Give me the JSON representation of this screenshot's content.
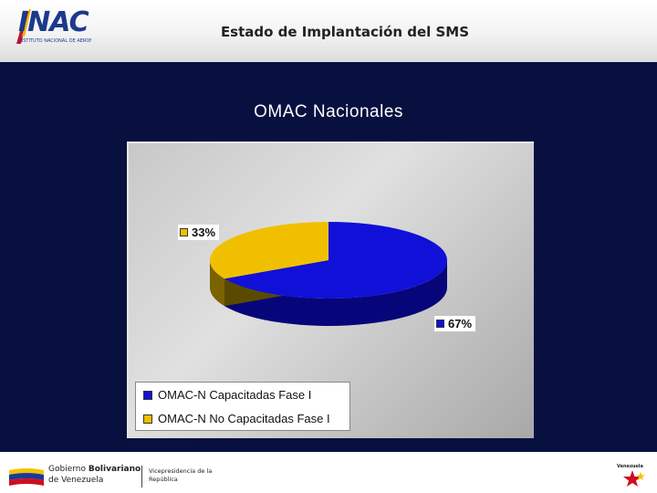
{
  "header": {
    "title": "Estado de Implantación del SMS",
    "logo_text": "INAC",
    "logo_subtext": "INSTITUTO NACIONAL DE AERONÁUTICA CIVIL"
  },
  "chart_data": {
    "type": "pie",
    "title": "OMAC Nacionales",
    "categories": [
      "OMAC-N Capacitadas Fase I",
      "OMAC-N No Capacitadas Fase I"
    ],
    "values": [
      67,
      33
    ],
    "labels": [
      "67%",
      "33%"
    ],
    "colors": [
      "#1010d8",
      "#f0c000"
    ],
    "legend_position": "bottom-left",
    "style": "3d"
  },
  "footer": {
    "gov_line1": "Gobierno ",
    "gov_line1_bold": "Bolivariano",
    "gov_line2": "de Venezuela",
    "vice_line1": "Vicepresidencia de la",
    "vice_line2": "República",
    "right_logo_text": "Venezuela"
  }
}
